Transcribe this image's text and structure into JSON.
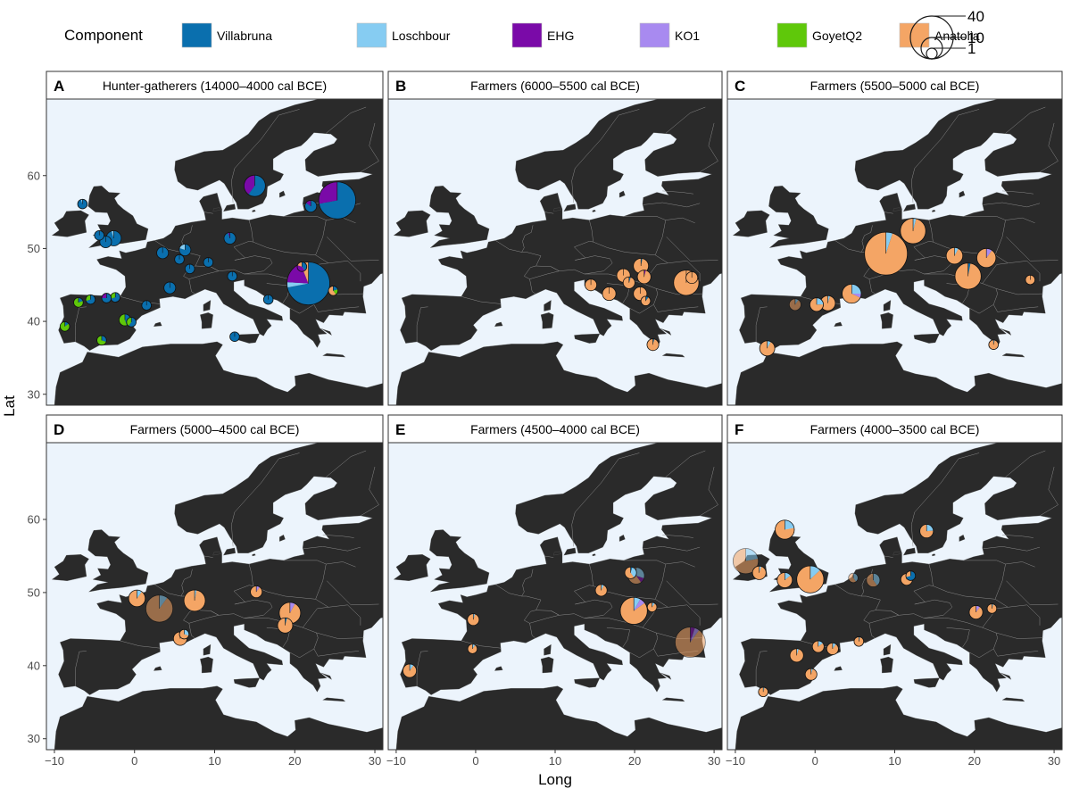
{
  "legend": {
    "title": "Component",
    "colors": {
      "Villabruna": "#0a6fae",
      "Loschbour": "#86ccf2",
      "EHG": "#7a0aa8",
      "KO1": "#a88af0",
      "GoyetQ2": "#5fc80a",
      "Anatolia": "#f4a565"
    },
    "items": [
      {
        "label": "Villabruna",
        "color": "#0a6fae"
      },
      {
        "label": "Loschbour",
        "color": "#86ccf2"
      },
      {
        "label": "EHG",
        "color": "#7a0aa8"
      },
      {
        "label": "KO1",
        "color": "#a88af0"
      },
      {
        "label": "GoyetQ2",
        "color": "#5fc80a"
      },
      {
        "label": "Anatolia",
        "color": "#f4a565"
      }
    ],
    "size_labels": [
      "40",
      "10",
      "1"
    ]
  },
  "axes": {
    "xlabel": "Long",
    "ylabel": "Lat",
    "xticks": [
      "−10",
      "0",
      "10",
      "20",
      "30"
    ],
    "yticks": [
      "30",
      "40",
      "50",
      "60"
    ]
  },
  "chart_data": {
    "type": "scatter",
    "subtype": "pie-map",
    "x_label": "Long",
    "y_label": "Lat",
    "xlim": [
      -11,
      31
    ],
    "ylim": [
      28.5,
      70.5
    ],
    "size_legend": [
      40,
      10,
      1
    ],
    "panels": [
      {
        "letter": "A",
        "title": "Hunter-gatherers (14000–4000 cal BCE)",
        "points": [
          {
            "lon": 15,
            "lat": 58.6,
            "n": 10,
            "Villabruna": 0.6,
            "EHG": 0.4
          },
          {
            "lon": 25.3,
            "lat": 56.6,
            "n": 30,
            "Villabruna": 0.72,
            "EHG": 0.28
          },
          {
            "lon": 22,
            "lat": 55.8,
            "n": 3,
            "Villabruna": 0.85,
            "EHG": 0.15
          },
          {
            "lon": -6.5,
            "lat": 56.1,
            "n": 2,
            "Villabruna": 0.95,
            "Loschbour": 0.05
          },
          {
            "lon": -3.6,
            "lat": 50.9,
            "n": 3,
            "Villabruna": 1.0
          },
          {
            "lon": -2.6,
            "lat": 51.4,
            "n": 5,
            "Villabruna": 0.95,
            "Loschbour": 0.05
          },
          {
            "lon": -4.4,
            "lat": 51.8,
            "n": 2,
            "Villabruna": 1.0
          },
          {
            "lon": 3.5,
            "lat": 49.4,
            "n": 3,
            "Villabruna": 1.0
          },
          {
            "lon": 6.3,
            "lat": 49.8,
            "n": 3,
            "Villabruna": 0.8,
            "Loschbour": 0.2
          },
          {
            "lon": 5.6,
            "lat": 48.5,
            "n": 2,
            "Villabruna": 1.0
          },
          {
            "lon": 6.9,
            "lat": 47.2,
            "n": 2,
            "Villabruna": 1.0
          },
          {
            "lon": 9.2,
            "lat": 48.1,
            "n": 2,
            "Villabruna": 1.0
          },
          {
            "lon": 11.9,
            "lat": 51.4,
            "n": 3,
            "Villabruna": 0.95,
            "EHG": 0.05
          },
          {
            "lon": 12.2,
            "lat": 46.2,
            "n": 2,
            "Villabruna": 1.0
          },
          {
            "lon": 4.4,
            "lat": 44.6,
            "n": 3,
            "Villabruna": 1.0
          },
          {
            "lon": 1.5,
            "lat": 42.2,
            "n": 2,
            "Villabruna": 1.0
          },
          {
            "lon": -2.4,
            "lat": 43.3,
            "n": 2,
            "Villabruna": 0.7,
            "GoyetQ2": 0.3
          },
          {
            "lon": -3.5,
            "lat": 43.2,
            "n": 2,
            "Villabruna": 0.75,
            "EHG": 0.25
          },
          {
            "lon": -5.5,
            "lat": 43.0,
            "n": 2,
            "Villabruna": 0.7,
            "GoyetQ2": 0.3
          },
          {
            "lon": -7.0,
            "lat": 42.6,
            "n": 2,
            "Villabruna": 0.2,
            "GoyetQ2": 0.8
          },
          {
            "lon": -8.7,
            "lat": 39.3,
            "n": 2,
            "Villabruna": 0.15,
            "GoyetQ2": 0.85
          },
          {
            "lon": -1.2,
            "lat": 40.2,
            "n": 3,
            "Villabruna": 0.45,
            "GoyetQ2": 0.55
          },
          {
            "lon": -4.1,
            "lat": 37.4,
            "n": 2,
            "Villabruna": 0.3,
            "GoyetQ2": 0.7
          },
          {
            "lon": -0.4,
            "lat": 39.9,
            "n": 2,
            "Villabruna": 0.6,
            "GoyetQ2": 0.4
          },
          {
            "lon": 12.5,
            "lat": 37.9,
            "n": 2,
            "Villabruna": 1.0
          },
          {
            "lon": 16.7,
            "lat": 43.0,
            "n": 2,
            "Villabruna": 1.0
          },
          {
            "lon": 21.7,
            "lat": 45.2,
            "n": 40,
            "Villabruna": 0.72,
            "EHG": 0.18,
            "Anatolia": 0.06,
            "Loschbour": 0.04
          },
          {
            "lon": 24.8,
            "lat": 44.2,
            "n": 2,
            "Villabruna": 0.2,
            "Anatolia": 0.6,
            "GoyetQ2": 0.2
          },
          {
            "lon": 20.9,
            "lat": 47.5,
            "n": 2,
            "Villabruna": 0.4,
            "EHG": 0.4,
            "Anatolia": 0.2
          }
        ]
      },
      {
        "letter": "B",
        "title": "Farmers (6000–5500 cal BCE)",
        "points": [
          {
            "lon": 14.5,
            "lat": 45.0,
            "n": 3,
            "Anatolia": 1.0
          },
          {
            "lon": 16.8,
            "lat": 43.8,
            "n": 4,
            "Anatolia": 1.0
          },
          {
            "lon": 18.6,
            "lat": 46.3,
            "n": 4,
            "Anatolia": 1.0
          },
          {
            "lon": 20.8,
            "lat": 47.6,
            "n": 5,
            "Anatolia": 0.97,
            "Villabruna": 0.03
          },
          {
            "lon": 21.2,
            "lat": 46.1,
            "n": 4,
            "Anatolia": 0.96,
            "EHG": 0.04
          },
          {
            "lon": 19.3,
            "lat": 45.3,
            "n": 3,
            "Anatolia": 0.95,
            "Villabruna": 0.05
          },
          {
            "lon": 20.7,
            "lat": 43.8,
            "n": 4,
            "Anatolia": 1.0
          },
          {
            "lon": 21.4,
            "lat": 42.8,
            "n": 2,
            "Anatolia": 0.9,
            "Villabruna": 0.1
          },
          {
            "lon": 26.5,
            "lat": 45.3,
            "n": 14,
            "Anatolia": 1.0
          },
          {
            "lon": 27.2,
            "lat": 46.0,
            "n": 3,
            "Anatolia": 1.0
          },
          {
            "lon": 22.3,
            "lat": 36.8,
            "n": 3,
            "Anatolia": 0.96,
            "Villabruna": 0.04
          }
        ]
      },
      {
        "letter": "C",
        "title": "Farmers (5500–5000 cal BCE)",
        "points": [
          {
            "lon": 12.3,
            "lat": 52.4,
            "n": 14,
            "Anatolia": 0.96,
            "Loschbour": 0.04
          },
          {
            "lon": 8.9,
            "lat": 49.3,
            "n": 40,
            "Anatolia": 0.95,
            "Loschbour": 0.05
          },
          {
            "lon": 17.5,
            "lat": 49.0,
            "n": 6,
            "Anatolia": 0.92,
            "Loschbour": 0.08
          },
          {
            "lon": 21.5,
            "lat": 48.7,
            "n": 8,
            "Anatolia": 0.9,
            "KO1": 0.1
          },
          {
            "lon": 19.2,
            "lat": 46.2,
            "n": 15,
            "Anatolia": 0.97,
            "Villabruna": 0.03
          },
          {
            "lon": 27.0,
            "lat": 45.7,
            "n": 2,
            "Anatolia": 1.0
          },
          {
            "lon": 4.6,
            "lat": 43.8,
            "n": 8,
            "Anatolia": 0.68,
            "Loschbour": 0.25,
            "KO1": 0.07
          },
          {
            "lon": 0.2,
            "lat": 42.3,
            "n": 4,
            "Anatolia": 0.75,
            "Loschbour": 0.25
          },
          {
            "lon": 1.6,
            "lat": 42.5,
            "n": 5,
            "Anatolia": 0.95,
            "Loschbour": 0.05
          },
          {
            "lon": -2.5,
            "lat": 42.3,
            "n": 3,
            "Anatolia": 0.9,
            "Loschbour": 0.1,
            "dimmed": true
          },
          {
            "lon": -6.0,
            "lat": 36.3,
            "n": 5,
            "Anatolia": 0.92,
            "Loschbour": 0.08
          },
          {
            "lon": 22.4,
            "lat": 36.8,
            "n": 2,
            "Anatolia": 0.96,
            "Loschbour": 0.04
          }
        ]
      },
      {
        "letter": "D",
        "title": "Farmers (5000–4500 cal BCE)",
        "points": [
          {
            "lon": 0.3,
            "lat": 49.2,
            "n": 6,
            "Anatolia": 0.9,
            "Loschbour": 0.1
          },
          {
            "lon": 3.1,
            "lat": 47.8,
            "n": 16,
            "Anatolia": 0.9,
            "Loschbour": 0.1,
            "dimmed": true
          },
          {
            "lon": 7.5,
            "lat": 48.9,
            "n": 10,
            "Anatolia": 0.97,
            "Loschbour": 0.03
          },
          {
            "lon": 6.2,
            "lat": 44.3,
            "n": 2,
            "Anatolia": 0.7,
            "Loschbour": 0.3
          },
          {
            "lon": 5.7,
            "lat": 43.7,
            "n": 4,
            "Anatolia": 0.9,
            "Loschbour": 0.1
          },
          {
            "lon": 15.2,
            "lat": 50.1,
            "n": 3,
            "Anatolia": 0.9,
            "KO1": 0.1
          },
          {
            "lon": 19.4,
            "lat": 47.2,
            "n": 10,
            "Anatolia": 0.92,
            "KO1": 0.08
          },
          {
            "lon": 18.8,
            "lat": 45.5,
            "n": 5,
            "Anatolia": 0.96,
            "Villabruna": 0.04
          }
        ]
      },
      {
        "letter": "E",
        "title": "Farmers (4500–4000 cal BCE)",
        "points": [
          {
            "lon": 15.8,
            "lat": 50.3,
            "n": 3,
            "Anatolia": 0.92,
            "Loschbour": 0.08
          },
          {
            "lon": 19.5,
            "lat": 52.7,
            "n": 3,
            "Anatolia": 0.6,
            "Loschbour": 0.35,
            "Villabruna": 0.05
          },
          {
            "lon": 20.2,
            "lat": 52.3,
            "n": 6,
            "Anatolia": 0.6,
            "Loschbour": 0.3,
            "EHG": 0.1,
            "dimmed": true
          },
          {
            "lon": 19.9,
            "lat": 47.5,
            "n": 16,
            "Anatolia": 0.85,
            "Loschbour": 0.08,
            "KO1": 0.07
          },
          {
            "lon": 22.2,
            "lat": 48.0,
            "n": 2,
            "Anatolia": 0.9,
            "Loschbour": 0.1
          },
          {
            "lon": 27.0,
            "lat": 43.2,
            "n": 20,
            "Anatolia": 0.9,
            "KO1": 0.05,
            "EHG": 0.05,
            "dimmed": true
          },
          {
            "lon": -0.3,
            "lat": 46.3,
            "n": 3,
            "Anatolia": 0.95,
            "Loschbour": 0.05
          },
          {
            "lon": -0.4,
            "lat": 42.3,
            "n": 2,
            "Anatolia": 0.9,
            "Loschbour": 0.1
          },
          {
            "lon": -8.3,
            "lat": 39.3,
            "n": 4,
            "Anatolia": 0.9,
            "Loschbour": 0.1
          }
        ]
      },
      {
        "letter": "F",
        "title": "Farmers (4000–3500 cal BCE)",
        "points": [
          {
            "lon": -3.8,
            "lat": 58.6,
            "n": 8,
            "Anatolia": 0.78,
            "Loschbour": 0.22
          },
          {
            "lon": -8.7,
            "lat": 54.3,
            "n": 14,
            "Anatolia": 0.78,
            "Loschbour": 0.22,
            "dimmed": true
          },
          {
            "lon": -7.0,
            "lat": 52.7,
            "n": 4,
            "Anatolia": 0.95,
            "Loschbour": 0.05
          },
          {
            "lon": -3.8,
            "lat": 51.7,
            "n": 5,
            "Anatolia": 0.86,
            "Loschbour": 0.14
          },
          {
            "lon": -0.6,
            "lat": 51.8,
            "n": 16,
            "Anatolia": 0.87,
            "Loschbour": 0.13
          },
          {
            "lon": 4.8,
            "lat": 52.0,
            "n": 2,
            "Anatolia": 0.6,
            "Loschbour": 0.4,
            "dimmed": true
          },
          {
            "lon": 7.3,
            "lat": 51.7,
            "n": 4,
            "Anatolia": 0.6,
            "Loschbour": 0.4,
            "dimmed": true
          },
          {
            "lon": 11.5,
            "lat": 51.8,
            "n": 3,
            "Anatolia": 0.8,
            "Loschbour": 0.2
          },
          {
            "lon": 12.0,
            "lat": 52.3,
            "n": 2,
            "Anatolia": 0.3,
            "Villabruna": 0.7
          },
          {
            "lon": 14.0,
            "lat": 58.4,
            "n": 4,
            "Anatolia": 0.76,
            "Loschbour": 0.24
          },
          {
            "lon": 20.2,
            "lat": 47.3,
            "n": 4,
            "Anatolia": 0.9,
            "KO1": 0.1
          },
          {
            "lon": 22.2,
            "lat": 47.8,
            "n": 2,
            "Anatolia": 0.95,
            "Loschbour": 0.05
          },
          {
            "lon": -2.3,
            "lat": 41.4,
            "n": 4,
            "Anatolia": 0.95,
            "Loschbour": 0.05
          },
          {
            "lon": 0.4,
            "lat": 42.6,
            "n": 3,
            "Anatolia": 0.85,
            "Loschbour": 0.15
          },
          {
            "lon": 2.2,
            "lat": 42.3,
            "n": 3,
            "Anatolia": 0.9,
            "Loschbour": 0.1
          },
          {
            "lon": -0.5,
            "lat": 38.8,
            "n": 3,
            "Anatolia": 0.95,
            "Loschbour": 0.05
          },
          {
            "lon": 5.5,
            "lat": 43.3,
            "n": 2,
            "Anatolia": 0.95,
            "Loschbour": 0.05
          },
          {
            "lon": -6.5,
            "lat": 36.4,
            "n": 2,
            "Anatolia": 0.95,
            "Loschbour": 0.05
          }
        ]
      }
    ]
  }
}
